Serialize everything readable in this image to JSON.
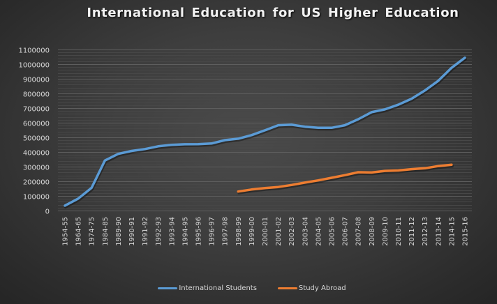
{
  "title": "International Education for US Higher Education",
  "colors": {
    "international_students": "#5b9bd5",
    "study_abroad": "#ed7d31",
    "axis_text": "#d9d9d9",
    "gridline_major": "#5e5e5e",
    "gridline_minor": "#474747"
  },
  "legend": {
    "items": [
      {
        "label": "International Students",
        "color": "#5b9bd5"
      },
      {
        "label": "Study Abroad",
        "color": "#ed7d31"
      }
    ],
    "position": "bottom"
  },
  "chart_data": {
    "type": "line",
    "title": "International Education for US Higher Education",
    "xlabel": "",
    "ylabel": "",
    "ylim": [
      0,
      1100000
    ],
    "yticks": [
      0,
      100000,
      200000,
      300000,
      400000,
      500000,
      600000,
      700000,
      800000,
      900000,
      1000000,
      1100000
    ],
    "grid": true,
    "legend_position": "bottom",
    "categories": [
      "1954-55",
      "1964-65",
      "1974-75",
      "1984-85",
      "1989-90",
      "1990-91",
      "1991-92",
      "1992-93",
      "1993-94",
      "1994-95",
      "1995-96",
      "1996-97",
      "1997-98",
      "1998-99",
      "1999-00",
      "2000-01",
      "2001-02",
      "2002-03",
      "2003-04",
      "2004-05",
      "2005-06",
      "2006-07",
      "2007-08",
      "2008-09",
      "2009-10",
      "2010-11",
      "2011-12",
      "2012-13",
      "2013-14",
      "2014-15",
      "2015-16"
    ],
    "series": [
      {
        "name": "International Students",
        "color": "#5b9bd5",
        "values": [
          34000,
          82000,
          155000,
          342000,
          387000,
          407000,
          420000,
          439000,
          449000,
          453000,
          454000,
          458000,
          481000,
          491000,
          515000,
          548000,
          583000,
          586000,
          573000,
          565000,
          565000,
          583000,
          624000,
          672000,
          691000,
          723000,
          764000,
          820000,
          886000,
          975000,
          1044000
        ]
      },
      {
        "name": "Study Abroad",
        "color": "#ed7d31",
        "values": [
          null,
          null,
          null,
          null,
          null,
          null,
          null,
          null,
          null,
          null,
          null,
          null,
          null,
          130000,
          144000,
          154000,
          161000,
          175000,
          191000,
          206000,
          224000,
          242000,
          262000,
          260000,
          271000,
          274000,
          283000,
          289000,
          304000,
          313000,
          null
        ]
      }
    ]
  }
}
